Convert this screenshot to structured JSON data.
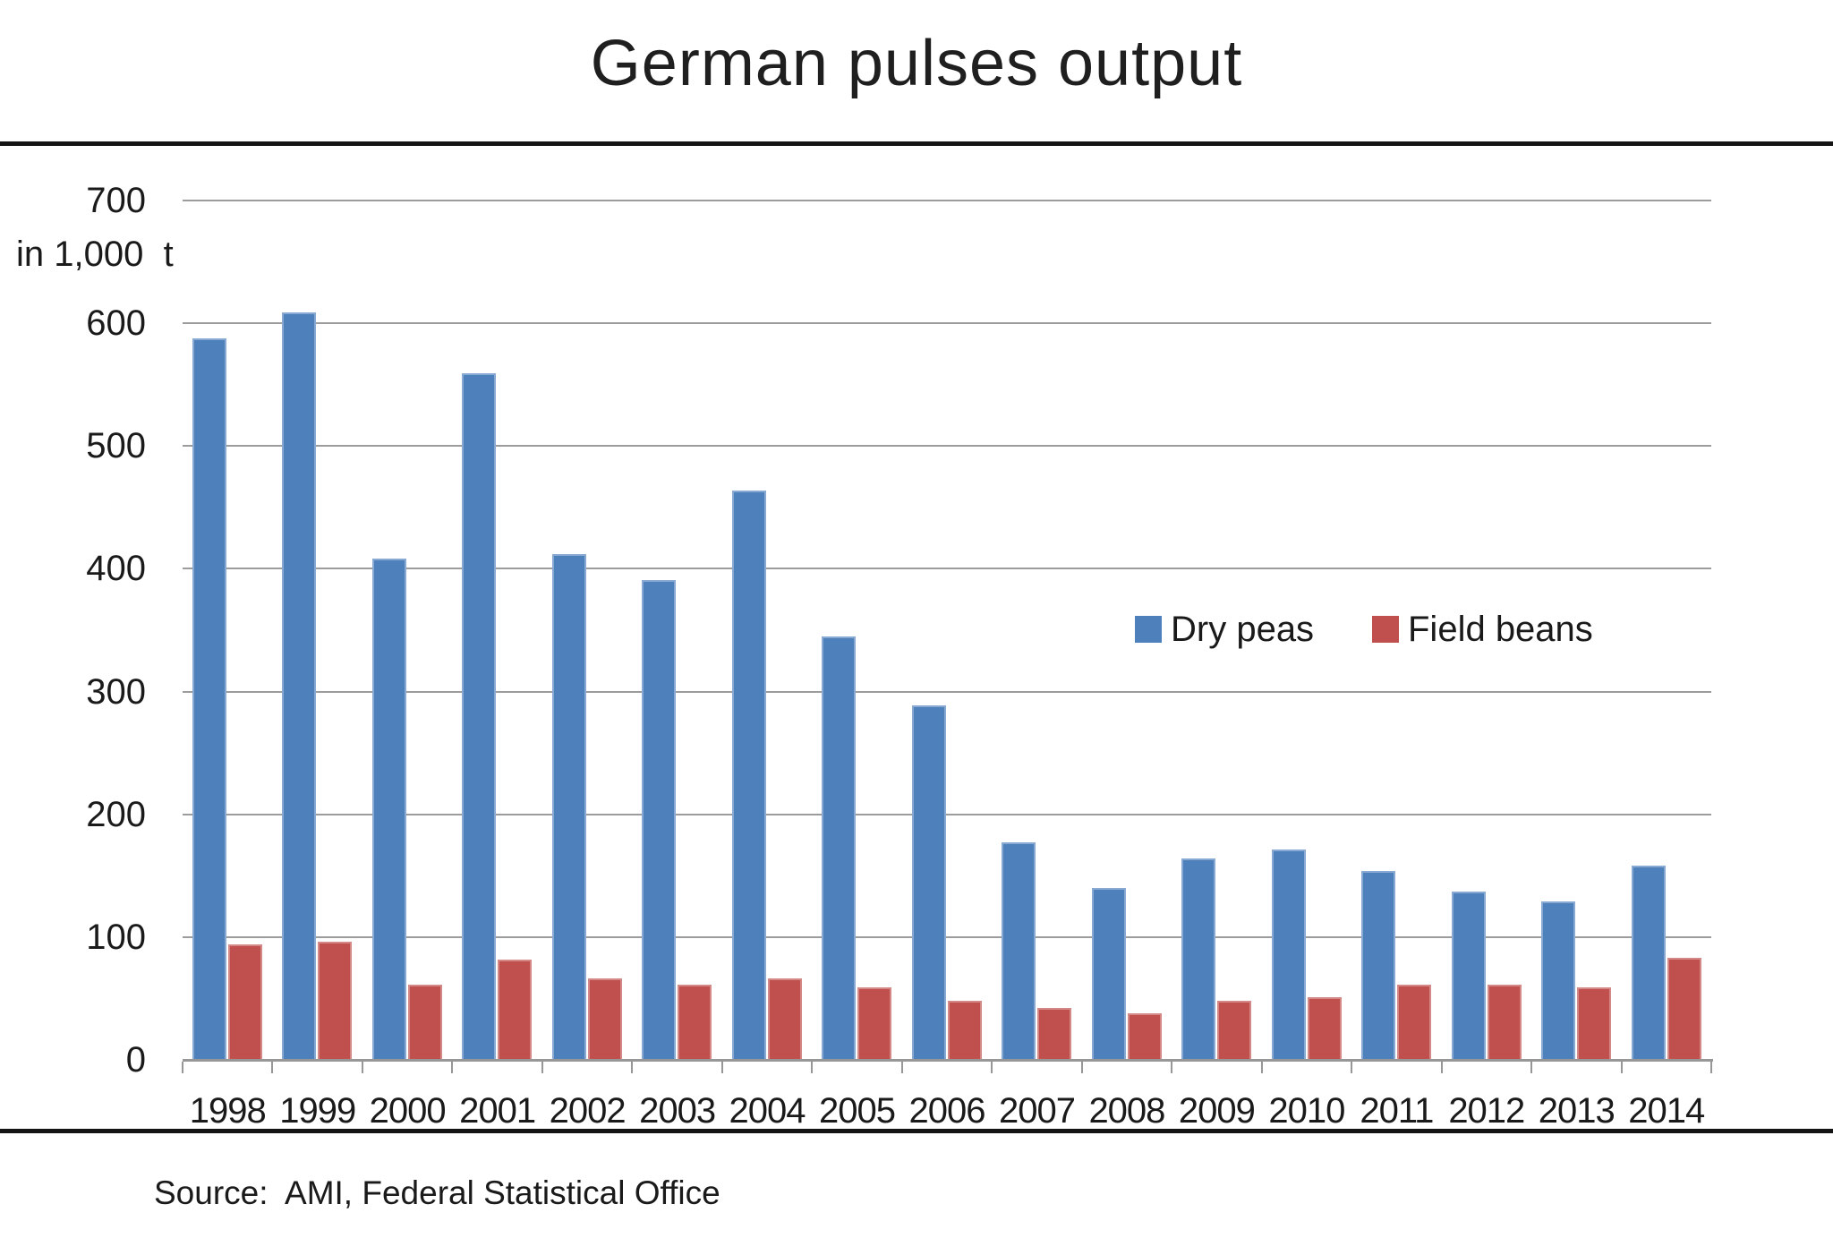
{
  "title": "German pulses output",
  "y_axis": {
    "unit_label": "in 1,000  t",
    "tick_labels": [
      "700",
      "600",
      "500",
      "400",
      "300",
      "200",
      "100",
      "0"
    ]
  },
  "legend": {
    "items": [
      {
        "label": "Dry peas",
        "color": "#4E81BC"
      },
      {
        "label": "Field beans",
        "color": "#C0504D"
      }
    ]
  },
  "source": "Source:  AMI, Federal Statistical Office",
  "colors": {
    "dry_peas": "#4E81BC",
    "field_beans": "#C0504D",
    "gridline": "#9C9C9C",
    "axis": "#979797",
    "rule": "#141414"
  },
  "chart_data": {
    "type": "bar",
    "title": "German pulses output",
    "categories": [
      "1998",
      "1999",
      "2000",
      "2001",
      "2002",
      "2003",
      "2004",
      "2005",
      "2006",
      "2007",
      "2008",
      "2009",
      "2010",
      "2011",
      "2012",
      "2013",
      "2014"
    ],
    "series": [
      {
        "name": "Dry peas",
        "color": "#4E81BC",
        "values": [
          588,
          609,
          408,
          559,
          412,
          391,
          464,
          345,
          289,
          177,
          140,
          164,
          171,
          154,
          137,
          129,
          158
        ]
      },
      {
        "name": "Field beans",
        "color": "#C0504D",
        "values": [
          94,
          96,
          61,
          82,
          66,
          61,
          66,
          59,
          48,
          42,
          38,
          48,
          51,
          61,
          61,
          59,
          83
        ]
      }
    ],
    "xlabel": "",
    "ylabel": "in 1,000 t",
    "ylim": [
      0,
      700
    ],
    "ytick_step": 100,
    "grid": true,
    "legend_position": "inside-right"
  }
}
